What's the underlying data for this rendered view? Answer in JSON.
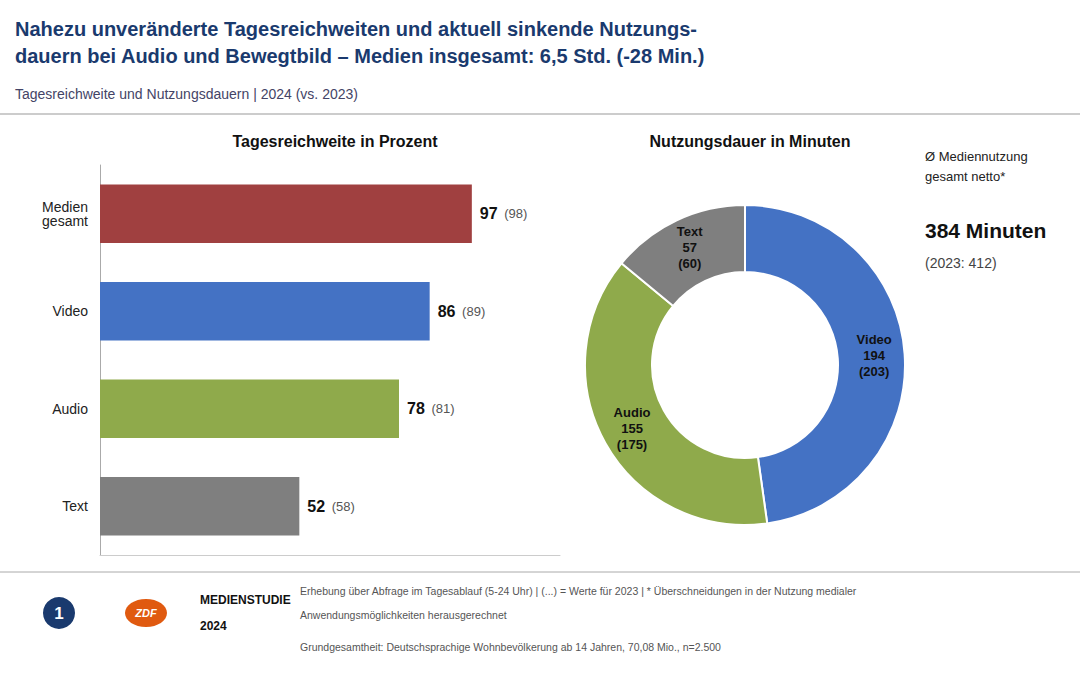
{
  "title": "Nahezu unveränderte Tagesreichweiten und aktuell sinkende Nutzungs-\ndauern bei Audio und Bewegtbild – Medien insgesamt: 6,5 Std. (-28 Min.)",
  "subtitle": "Tagesreichweite und Nutzungsdauern | 2024 (vs. 2023)",
  "annotations": [
    "Ø Mediennutzung",
    "gesamt netto*",
    "384 Minuten",
    "(2023: 412)",
    "1",
    "ZDF",
    "MEDIENSTUDIE",
    "2024",
    "Erhebung über Abfrage im Tagesablauf (5-24 Uhr) | (...) = Werte für 2023 | * Überschneidungen in der Nutzung medialer",
    "Anwendungsmöglichkeiten herausgerechnet",
    "Grundgesamtheit: Deutschsprachige Wohnbevölkerung ab 14 Jahren, 70,08 Mio., n=2.500"
  ],
  "chart_data": [
    {
      "type": "bar",
      "title": "Tagesreichweite in Prozent",
      "orientation": "horizontal",
      "categories": [
        "Medien\ngesamt",
        "Video",
        "Audio",
        "Text"
      ],
      "values": [
        97,
        86,
        78,
        52
      ],
      "prev_values": [
        98,
        89,
        81,
        58
      ],
      "colors": [
        "#a04040",
        "#4472c4",
        "#8faa4b",
        "#7f7f7f"
      ],
      "xlim": [
        0,
        120
      ],
      "xticks": [],
      "tick_labels": "y",
      "grid": false,
      "data_labels": true
    },
    {
      "type": "pie",
      "title": "Nutzungsdauer in Minuten",
      "labels": [
        "Video",
        "Audio",
        "Text"
      ],
      "values": [
        194,
        155,
        57
      ],
      "prev_values": [
        203,
        175,
        60
      ],
      "colors": [
        "#4472c4",
        "#8faa4b",
        "#7f7f7f"
      ],
      "data_labels": true
    }
  ]
}
